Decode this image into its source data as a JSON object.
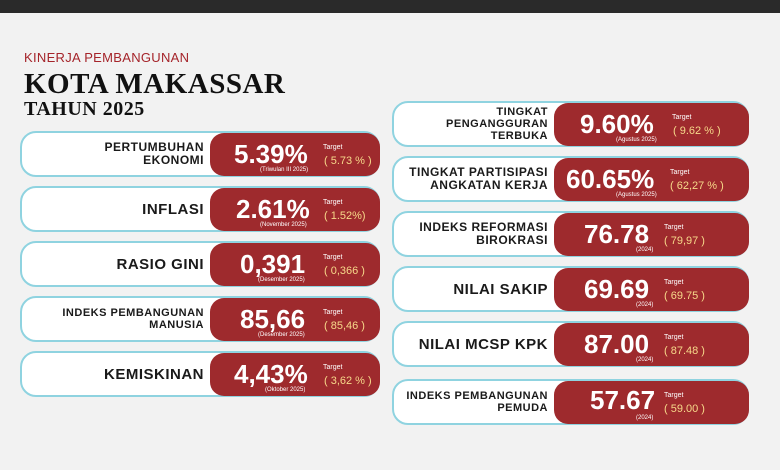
{
  "header": {
    "subtitle": "KINERJA PEMBANGUNAN",
    "title": "KOTA MAKASSAR",
    "year": "TAHUN 2025"
  },
  "colors": {
    "accent_red": "#9e2a2d",
    "card_border": "#8fd3e0",
    "target_text": "#f7d98a"
  },
  "left": [
    {
      "label": "PERTUMBUHAN EKONOMI",
      "value": "5.39%",
      "period": "(Triwulan III 2025)",
      "target_label": "Target",
      "target": "( 5.73 % )"
    },
    {
      "label": "INFLASI",
      "value": "2.61%",
      "period": "(November 2025)",
      "target_label": "Target",
      "target": "( 1.52%)"
    },
    {
      "label": "RASIO GINI",
      "value": "0,391",
      "period": "(Desember 2025)",
      "target_label": "Target",
      "target": "( 0,366 )"
    },
    {
      "label": "INDEKS PEMBANGUNAN MANUSIA",
      "value": "85,66",
      "period": "(Desember 2025)",
      "target_label": "Target",
      "target": "( 85,46 )"
    },
    {
      "label": "KEMISKINAN",
      "value": "4,43%",
      "period": "(Oktober 2025)",
      "target_label": "Target",
      "target": "( 3,62 % )"
    }
  ],
  "right": [
    {
      "label": "TINGKAT PENGANGGURAN TERBUKA",
      "value": "9.60%",
      "period": "(Agustus 2025)",
      "target_label": "Target",
      "target": "( 9.62 % )"
    },
    {
      "label": "TINGKAT PARTISIPASI ANGKATAN KERJA",
      "value": "60.65%",
      "period": "(Agustus 2025)",
      "target_label": "Target",
      "target": "( 62,27 % )"
    },
    {
      "label": "INDEKS REFORMASI BIROKRASI",
      "value": "76.78",
      "period": "(2024)",
      "target_label": "Target",
      "target": "( 79,97 )"
    },
    {
      "label": "NILAI SAKIP",
      "value": "69.69",
      "period": "(2024)",
      "target_label": "Target",
      "target": "( 69.75 )"
    },
    {
      "label": "NILAI MCSP KPK",
      "value": "87.00",
      "period": "(2024)",
      "target_label": "Target",
      "target": "( 87.48 )"
    },
    {
      "label": "INDEKS PEMBANGUNAN PEMUDA",
      "value": "57.67",
      "period": "(2024)",
      "target_label": "Target",
      "target": "( 59.00 )"
    }
  ]
}
